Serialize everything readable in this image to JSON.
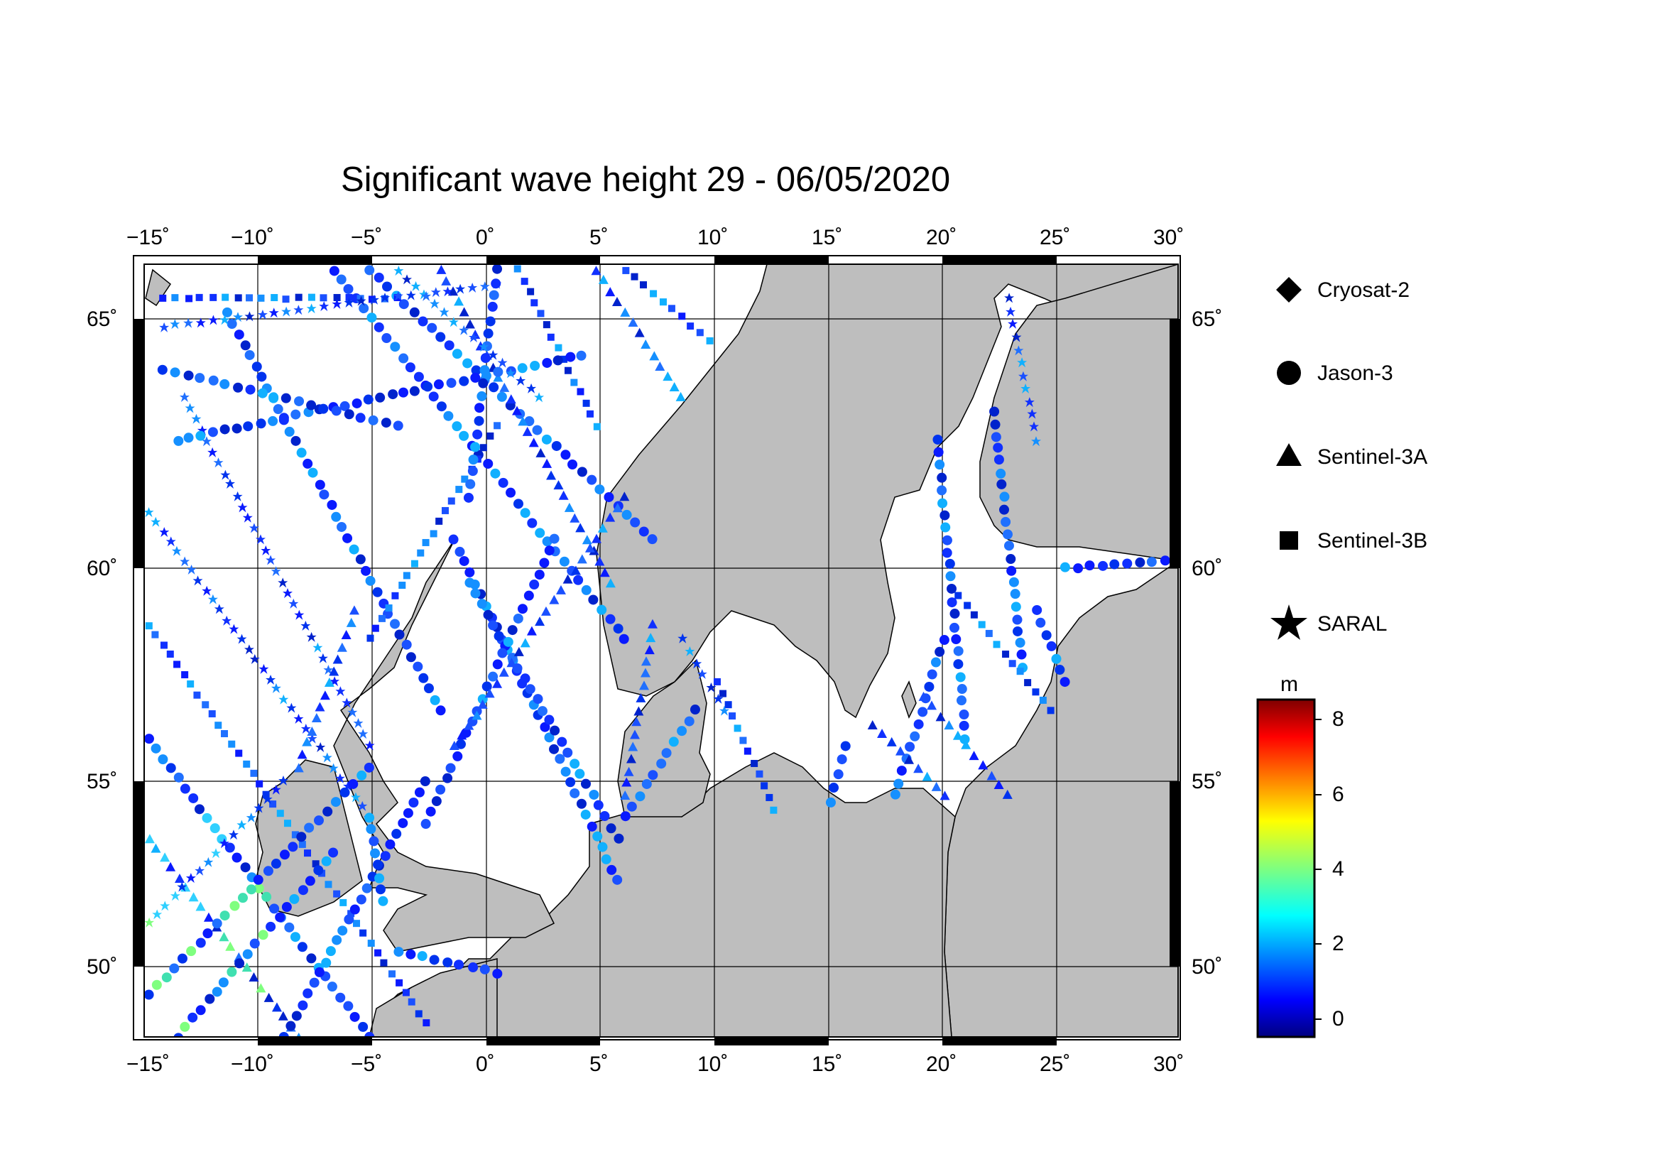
{
  "title": "Significant wave height 29 - 06/05/2020",
  "map": {
    "projection": "mercator",
    "lon_range": [
      -15,
      30
    ],
    "lat_range": [
      48.3,
      66.3
    ],
    "lon_ticks": [
      "−15˚",
      "−10˚",
      "−5˚",
      "0˚",
      "5˚",
      "10˚",
      "15˚",
      "20˚",
      "25˚",
      "30˚"
    ],
    "lat_ticks": [
      "50˚",
      "55˚",
      "60˚",
      "65˚"
    ],
    "land_color": "#bebebe",
    "sea_color": "#ffffff"
  },
  "legend": {
    "items": [
      {
        "label": "Cryosat-2",
        "marker": "diamond"
      },
      {
        "label": "Jason-3",
        "marker": "circle"
      },
      {
        "label": "Sentinel-3A",
        "marker": "triangle"
      },
      {
        "label": "Sentinel-3B",
        "marker": "square"
      },
      {
        "label": "SARAL",
        "marker": "star"
      }
    ]
  },
  "colorbar": {
    "unit": "m",
    "range": [
      -0.5,
      8.6
    ],
    "ticks": [
      "8",
      "6",
      "4",
      "2",
      "0"
    ],
    "colormap": "jet"
  }
}
